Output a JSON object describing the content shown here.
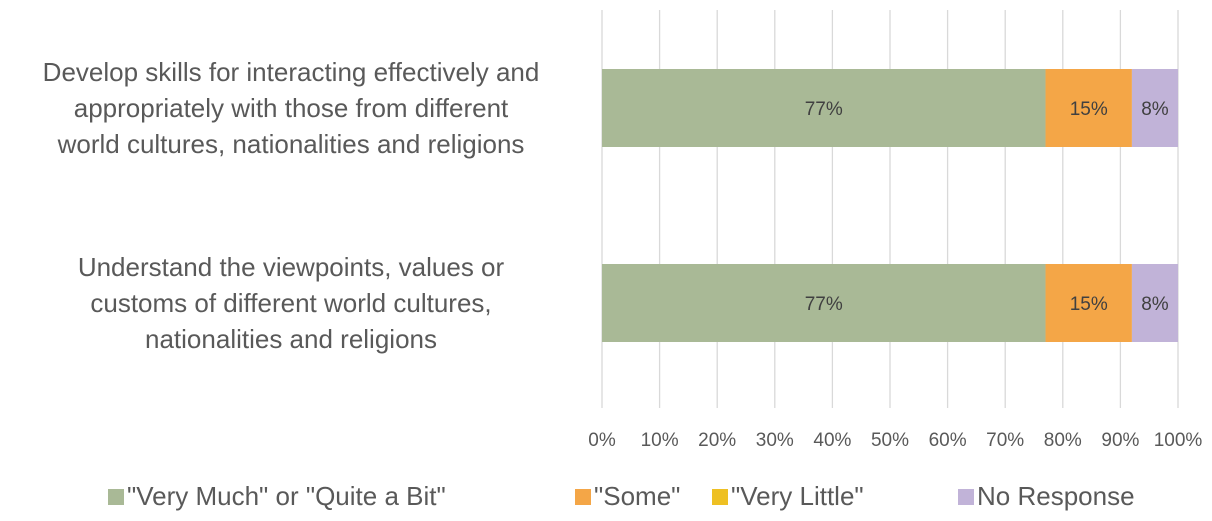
{
  "chart_data": {
    "type": "bar",
    "orientation": "horizontal",
    "stacked": true,
    "percent_scale": true,
    "categories": [
      [
        "Develop skills for interacting effectively and",
        "appropriately with those from different",
        "world cultures, nationalities and religions"
      ],
      [
        "Understand the viewpoints, values or",
        "customs of different world cultures,",
        "nationalities and religions"
      ]
    ],
    "series": [
      {
        "name": "\"Very Much\" or \"Quite a Bit\"",
        "values": [
          77,
          77
        ],
        "labels": [
          "77%",
          "77%"
        ],
        "color": "#A9B996"
      },
      {
        "name": "\"Some\"",
        "values": [
          15,
          15
        ],
        "labels": [
          "15%",
          "15%"
        ],
        "color": "#F4A647"
      },
      {
        "name": "\"Very Little\"",
        "values": [
          0,
          0
        ],
        "labels": [
          "",
          ""
        ],
        "color": "#EEC023"
      },
      {
        "name": "No Response",
        "values": [
          8,
          8
        ],
        "labels": [
          "8%",
          "8%"
        ],
        "color": "#C1B3D8"
      }
    ],
    "x_ticks": [
      "0%",
      "10%",
      "20%",
      "30%",
      "40%",
      "50%",
      "60%",
      "70%",
      "80%",
      "90%",
      "100%"
    ],
    "xlim": [
      0,
      100
    ],
    "grid": true,
    "gridline_color": "#D9D9D9",
    "legend_position": "bottom",
    "title": "",
    "xlabel": "",
    "ylabel": ""
  }
}
